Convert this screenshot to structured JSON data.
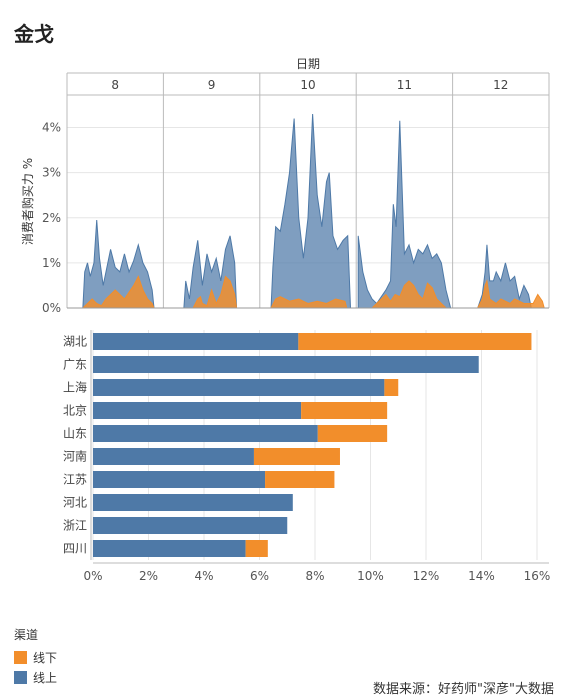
{
  "title": "金戈",
  "source": "数据来源：好药师\"深彦\"大数据",
  "colors": {
    "online": "#4e79a7",
    "offline": "#f28e2b",
    "grid": "#e6e6e6",
    "axis": "#bbbbbb"
  },
  "chart_data": [
    {
      "type": "area",
      "title": "",
      "xlabel": "日期",
      "ylabel": "消费者购买力 %",
      "panels": [
        "8",
        "9",
        "10",
        "11",
        "12"
      ],
      "ylim": [
        0,
        4.5
      ],
      "yticks": [
        "0%",
        "1%",
        "2%",
        "3%",
        "4%"
      ],
      "grid": true,
      "series": [
        {
          "name": "线上",
          "panels": [
            [
              [
                0.15,
                0
              ],
              [
                0.17,
                0.8
              ],
              [
                0.2,
                1.0
              ],
              [
                0.23,
                0.7
              ],
              [
                0.27,
                1.0
              ],
              [
                0.3,
                1.95
              ],
              [
                0.33,
                1.1
              ],
              [
                0.37,
                0.5
              ],
              [
                0.4,
                0.8
              ],
              [
                0.45,
                1.3
              ],
              [
                0.5,
                0.9
              ],
              [
                0.55,
                0.8
              ],
              [
                0.6,
                1.2
              ],
              [
                0.65,
                0.8
              ],
              [
                0.7,
                1.05
              ],
              [
                0.75,
                1.4
              ],
              [
                0.8,
                1.0
              ],
              [
                0.85,
                0.8
              ],
              [
                0.9,
                0.4
              ],
              [
                0.92,
                0
              ]
            ],
            [
              [
                0.2,
                0
              ],
              [
                0.22,
                0.6
              ],
              [
                0.26,
                0.2
              ],
              [
                0.3,
                0.9
              ],
              [
                0.35,
                1.5
              ],
              [
                0.38,
                0.9
              ],
              [
                0.4,
                0.5
              ],
              [
                0.45,
                1.2
              ],
              [
                0.5,
                0.8
              ],
              [
                0.55,
                1.1
              ],
              [
                0.6,
                0.6
              ],
              [
                0.65,
                1.3
              ],
              [
                0.7,
                1.6
              ],
              [
                0.75,
                1.0
              ],
              [
                0.77,
                0
              ]
            ],
            [
              [
                0.1,
                0
              ],
              [
                0.12,
                0.9
              ],
              [
                0.15,
                1.8
              ],
              [
                0.2,
                1.7
              ],
              [
                0.25,
                2.3
              ],
              [
                0.3,
                3.0
              ],
              [
                0.32,
                3.5
              ],
              [
                0.35,
                4.2
              ],
              [
                0.4,
                2.0
              ],
              [
                0.45,
                1.1
              ],
              [
                0.5,
                2.0
              ],
              [
                0.55,
                4.3
              ],
              [
                0.6,
                2.5
              ],
              [
                0.65,
                1.8
              ],
              [
                0.7,
                2.8
              ],
              [
                0.73,
                3.0
              ],
              [
                0.77,
                1.6
              ],
              [
                0.82,
                1.3
              ],
              [
                0.88,
                1.5
              ],
              [
                0.93,
                1.6
              ],
              [
                0.96,
                0
              ]
            ],
            [
              [
                0.0,
                1.6
              ],
              [
                0.05,
                0.8
              ],
              [
                0.1,
                0.4
              ],
              [
                0.15,
                0.2
              ],
              [
                0.2,
                0.1
              ],
              [
                0.3,
                0.4
              ],
              [
                0.35,
                0.6
              ],
              [
                0.38,
                2.3
              ],
              [
                0.41,
                1.8
              ],
              [
                0.45,
                4.15
              ],
              [
                0.5,
                1.2
              ],
              [
                0.55,
                1.4
              ],
              [
                0.6,
                1.0
              ],
              [
                0.65,
                1.3
              ],
              [
                0.7,
                1.2
              ],
              [
                0.75,
                1.4
              ],
              [
                0.8,
                1.1
              ],
              [
                0.85,
                1.2
              ],
              [
                0.9,
                1.0
              ],
              [
                0.95,
                0.4
              ],
              [
                1.0,
                0
              ]
            ],
            [
              [
                0.25,
                0
              ],
              [
                0.3,
                0.3
              ],
              [
                0.33,
                0.8
              ],
              [
                0.35,
                1.4
              ],
              [
                0.38,
                0.6
              ],
              [
                0.42,
                0.6
              ],
              [
                0.45,
                0.8
              ],
              [
                0.5,
                0.6
              ],
              [
                0.55,
                1.0
              ],
              [
                0.6,
                0.6
              ],
              [
                0.65,
                0.7
              ],
              [
                0.7,
                0.2
              ],
              [
                0.75,
                0.5
              ],
              [
                0.8,
                0.3
              ],
              [
                0.83,
                0
              ]
            ]
          ]
        },
        {
          "name": "线下",
          "panels": [
            [
              [
                0.15,
                0
              ],
              [
                0.2,
                0.1
              ],
              [
                0.25,
                0.2
              ],
              [
                0.3,
                0.1
              ],
              [
                0.35,
                0.05
              ],
              [
                0.4,
                0.2
              ],
              [
                0.45,
                0.3
              ],
              [
                0.5,
                0.4
              ],
              [
                0.55,
                0.3
              ],
              [
                0.6,
                0.2
              ],
              [
                0.65,
                0.35
              ],
              [
                0.7,
                0.5
              ],
              [
                0.75,
                0.7
              ],
              [
                0.8,
                0.4
              ],
              [
                0.85,
                0.2
              ],
              [
                0.9,
                0.1
              ],
              [
                0.92,
                0
              ]
            ],
            [
              [
                0.3,
                0
              ],
              [
                0.35,
                0.2
              ],
              [
                0.38,
                0.25
              ],
              [
                0.4,
                0.1
              ],
              [
                0.45,
                0.05
              ],
              [
                0.5,
                0.4
              ],
              [
                0.55,
                0.1
              ],
              [
                0.6,
                0.3
              ],
              [
                0.65,
                0.7
              ],
              [
                0.7,
                0.6
              ],
              [
                0.75,
                0.3
              ],
              [
                0.77,
                0
              ]
            ],
            [
              [
                0.1,
                0
              ],
              [
                0.15,
                0.2
              ],
              [
                0.2,
                0.25
              ],
              [
                0.3,
                0.15
              ],
              [
                0.4,
                0.2
              ],
              [
                0.5,
                0.1
              ],
              [
                0.6,
                0.15
              ],
              [
                0.7,
                0.1
              ],
              [
                0.8,
                0.2
              ],
              [
                0.9,
                0.15
              ],
              [
                0.92,
                0
              ]
            ],
            [
              [
                0.15,
                0
              ],
              [
                0.2,
                0.1
              ],
              [
                0.25,
                0.2
              ],
              [
                0.3,
                0.3
              ],
              [
                0.35,
                0.15
              ],
              [
                0.4,
                0.3
              ],
              [
                0.45,
                0.25
              ],
              [
                0.5,
                0.5
              ],
              [
                0.55,
                0.6
              ],
              [
                0.6,
                0.5
              ],
              [
                0.65,
                0.3
              ],
              [
                0.7,
                0.2
              ],
              [
                0.75,
                0.55
              ],
              [
                0.8,
                0.45
              ],
              [
                0.85,
                0.2
              ],
              [
                0.9,
                0.1
              ],
              [
                0.95,
                0
              ]
            ],
            [
              [
                0.25,
                0
              ],
              [
                0.3,
                0.2
              ],
              [
                0.33,
                0.5
              ],
              [
                0.35,
                0.6
              ],
              [
                0.38,
                0.2
              ],
              [
                0.45,
                0.1
              ],
              [
                0.5,
                0.2
              ],
              [
                0.55,
                0.15
              ],
              [
                0.6,
                0.1
              ],
              [
                0.65,
                0.2
              ],
              [
                0.7,
                0.15
              ],
              [
                0.75,
                0.1
              ],
              [
                0.85,
                0.1
              ],
              [
                0.9,
                0.3
              ],
              [
                0.95,
                0.15
              ],
              [
                0.97,
                0
              ]
            ]
          ]
        }
      ]
    },
    {
      "type": "bar",
      "orientation": "horizontal",
      "stacked": true,
      "categories": [
        "湖北",
        "广东",
        "上海",
        "北京",
        "山东",
        "河南",
        "江苏",
        "河北",
        "浙江",
        "四川"
      ],
      "series": [
        {
          "name": "线上",
          "values": [
            7.4,
            13.9,
            10.5,
            7.5,
            8.1,
            5.8,
            6.2,
            7.2,
            7.0,
            5.5
          ]
        },
        {
          "name": "线下",
          "values": [
            8.4,
            0.0,
            0.5,
            3.1,
            2.5,
            3.1,
            2.5,
            0.0,
            0.0,
            0.8
          ]
        }
      ],
      "xlim": [
        0,
        16
      ],
      "xticks": [
        "0%",
        "2%",
        "4%",
        "6%",
        "8%",
        "10%",
        "12%",
        "14%",
        "16%"
      ],
      "grid": true
    }
  ],
  "legend": {
    "title": "渠道",
    "items": [
      {
        "label": "线下",
        "color": "#f28e2b"
      },
      {
        "label": "线上",
        "color": "#4e79a7"
      }
    ]
  }
}
